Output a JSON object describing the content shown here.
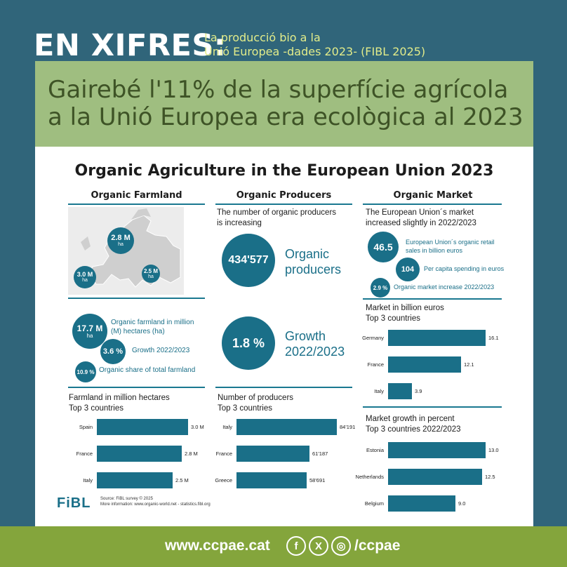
{
  "header": {
    "title": "EN XIFRES:",
    "subtitle_line1": "La producció bio a la",
    "subtitle_line2": "Unió Europea -dades 2023- (FIBL 2025)"
  },
  "banner": {
    "line1": "Gairebé l'11% de la superfície agrícola",
    "line2": "a la Unió Europea era ecològica al 2023"
  },
  "infographic": {
    "title": "Organic Agriculture in the European Union 2023",
    "farmland": {
      "heading": "Organic Farmland",
      "map_labels": [
        {
          "value": "2.8 M",
          "unit": "ha"
        },
        {
          "value": "3.0 M",
          "unit": "ha"
        },
        {
          "value": "2.5 M",
          "unit": "ha"
        }
      ],
      "area_value": "17.7 M",
      "area_unit": "ha",
      "area_label": "Organic farmland in million (M) hectares (ha)",
      "growth_value": "3.6 %",
      "growth_label": "Growth 2022/2023",
      "share_value": "10.9 %",
      "share_label": "Organic share of total farmland",
      "top3_title_line1": "Farmland in million hectares",
      "top3_title_line2": "Top 3 countries"
    },
    "producers": {
      "heading": "Organic Producers",
      "intro_line1": "The number of organic producers",
      "intro_line2": "is increasing",
      "count_value": "434'577",
      "count_label_line1": "Organic",
      "count_label_line2": "producers",
      "growth_value": "1.8 %",
      "growth_label_line1": "Growth",
      "growth_label_line2": "2022/2023",
      "top3_title_line1": "Number of producers",
      "top3_title_line2": "Top 3 countries"
    },
    "market": {
      "heading": "Organic Market",
      "intro_line1": "The European Union´s market",
      "intro_line2": "increased slightly in 2022/2023",
      "retail_value": "46.5",
      "retail_label": "European Union´s organic retail sales in billion euros",
      "per_capita_value": "104",
      "per_capita_label": "Per capita spending in euros",
      "increase_value": "2.9 %",
      "increase_label": "Organic market increase 2022/2023",
      "top3_title_line1": "Market in billion euros",
      "top3_title_line2": "Top 3 countries",
      "growth_title_line1": "Market growth in percent",
      "growth_title_line2": "Top 3 countries 2022/2023"
    },
    "logo": "FiBL",
    "source_line1": "Source: FiBL survey © 2025",
    "source_line2": "More information: www.organic-world.net - statistics.fibl.org"
  },
  "chart_data": [
    {
      "type": "bar",
      "orientation": "horizontal",
      "categories": [
        "Spain",
        "France",
        "Italy"
      ],
      "values": [
        3.0,
        2.8,
        2.5
      ],
      "labels": [
        "3.0 M",
        "2.8 M",
        "2.5 M"
      ],
      "title": "Farmland in million hectares Top 3 countries"
    },
    {
      "type": "bar",
      "orientation": "horizontal",
      "categories": [
        "Italy",
        "France",
        "Greece"
      ],
      "values": [
        84191,
        61187,
        58691
      ],
      "labels": [
        "84'191",
        "61'187",
        "58'691"
      ],
      "title": "Number of producers Top 3 countries"
    },
    {
      "type": "bar",
      "orientation": "horizontal",
      "categories": [
        "Germany",
        "France",
        "Italy"
      ],
      "values": [
        16.1,
        12.1,
        3.9
      ],
      "labels": [
        "16.1",
        "12.1",
        "3.9"
      ],
      "title": "Market in billion euros Top 3 countries"
    },
    {
      "type": "bar",
      "orientation": "horizontal",
      "categories": [
        "Estonia",
        "Netherlands",
        "Belgium"
      ],
      "values": [
        13.0,
        12.5,
        9.0
      ],
      "labels": [
        "13.0",
        "12.5",
        "9.0"
      ],
      "title": "Market growth in percent Top 3 countries 2022/2023"
    }
  ],
  "footer": {
    "url": "www.ccpae.cat",
    "handle": "/ccpae",
    "social_icons": [
      "facebook-icon",
      "x-icon",
      "instagram-icon"
    ],
    "social_glyphs": [
      "f",
      "X",
      "◎"
    ]
  },
  "colors": {
    "background": "#30657a",
    "banner": "#9fbe80",
    "teal": "#1a6f88",
    "footer": "#84a53c"
  }
}
